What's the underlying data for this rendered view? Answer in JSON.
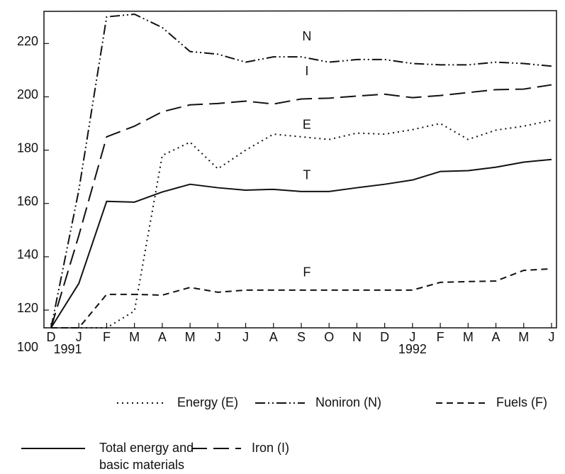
{
  "chart_data": {
    "type": "line",
    "categories": [
      "D",
      "J",
      "F",
      "M",
      "A",
      "M",
      "J",
      "J",
      "A",
      "S",
      "O",
      "N",
      "D",
      "J",
      "F",
      "M",
      "A",
      "M",
      "J"
    ],
    "years": [
      "1991",
      "1992"
    ],
    "ylim": [
      100,
      231
    ],
    "axis_break": [
      100,
      120
    ],
    "yticks": [
      100,
      120,
      140,
      160,
      180,
      200,
      220
    ],
    "series": [
      {
        "name": "Energy (E)",
        "tag": "E",
        "color": "#111111",
        "dash": "dotted",
        "values": [
          100,
          100,
          100,
          119,
          178,
          183,
          173,
          180,
          186,
          185,
          184,
          186.4,
          186,
          187.7,
          190,
          184,
          187.5,
          189,
          191.2
        ]
      },
      {
        "name": "Noniron (N)",
        "tag": "N",
        "color": "#111111",
        "dash": "dash-dot",
        "values": [
          100,
          165,
          230,
          231,
          226,
          217,
          216,
          213,
          215,
          215,
          213,
          214,
          214,
          212.5,
          212,
          212,
          213,
          212.5,
          211.5
        ]
      },
      {
        "name": "Fuels (F)",
        "tag": "F",
        "color": "#111111",
        "dash": "dashed",
        "values": [
          100,
          100,
          125.9,
          125.9,
          125.6,
          128.5,
          126.7,
          127.5,
          127.5,
          127.5,
          127.5,
          127.5,
          127.5,
          127.5,
          130.4,
          130.7,
          130.9,
          134.9,
          135.5
        ]
      },
      {
        "name": [
          "Total energy and",
          "basic materials"
        ],
        "tag": "T",
        "color": "#111111",
        "dash": "solid",
        "values": [
          100,
          130,
          160.8,
          160.5,
          164.3,
          167.2,
          165.9,
          165,
          165.3,
          164.5,
          164.5,
          165.9,
          167.2,
          168.8,
          172,
          172.3,
          173.6,
          175.5,
          176.5
        ]
      },
      {
        "name": "Iron (I)",
        "tag": "I",
        "color": "#111111",
        "dash": "long-dash",
        "values": [
          100,
          148,
          185,
          189,
          194.4,
          197,
          197.5,
          198.4,
          197.3,
          199.2,
          199.5,
          200.3,
          201,
          199.7,
          200.5,
          201.6,
          202.7,
          202.9,
          204.5
        ]
      }
    ]
  }
}
